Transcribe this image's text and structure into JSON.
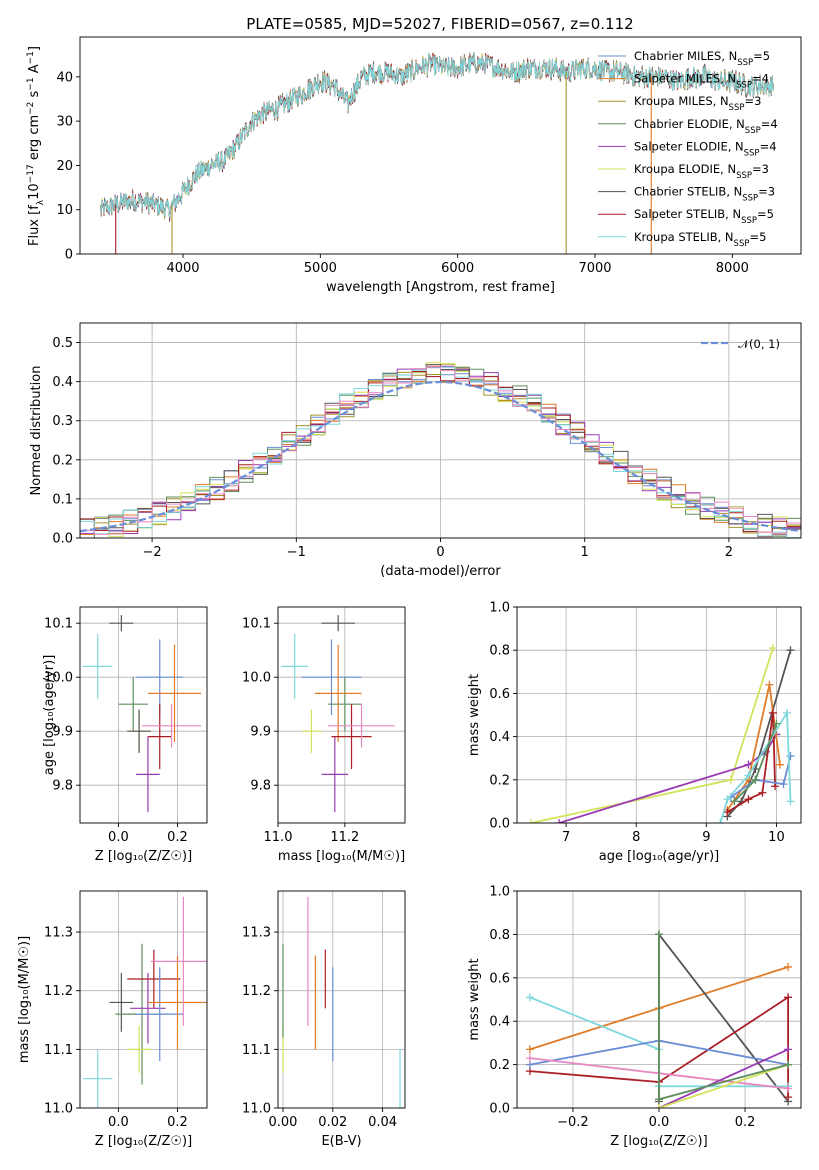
{
  "figure_title": "PLATE=0585, MJD=52027, FIBERID=0567, z=0.112",
  "colors": {
    "Chabrier MILES": "#6b8ed6",
    "Salpeter MILES": "#e07b28",
    "Kroupa MILES": "#a8922c",
    "Chabrier ELODIE": "#5e8f5e",
    "Salpeter ELODIE": "#9a3cb4",
    "Kroupa ELODIE": "#d4e25a",
    "Chabrier STELIB": "#555555",
    "Salpeter STELIB": "#aa1e24",
    "Kroupa STELIB": "#7fd8dc",
    "Pink": "#e888c0"
  },
  "chart_data": [
    {
      "id": "spectrum",
      "type": "line",
      "title": "PLATE=0585, MJD=52027, FIBERID=0567, z=0.112",
      "xlabel": "wavelength [Angstrom, rest frame]",
      "ylabel": "Flux [f$_\\lambda$10$^{-17}$ erg cm$^{-2}$ s$^{-1}$ A$^{-1}$]",
      "ylabel_parts": [
        "Flux [f",
        "λ",
        "10",
        "−17",
        " erg cm",
        "−2",
        " s",
        "−1",
        " A",
        "−1",
        "]"
      ],
      "xlim": [
        3250,
        8500
      ],
      "ylim": [
        0,
        49
      ],
      "xticks": [
        4000,
        5000,
        6000,
        7000,
        8000
      ],
      "yticks": [
        0,
        10,
        20,
        30,
        40
      ],
      "grid": false,
      "legend": "upper right",
      "flux_knots": {
        "x": [
          3400,
          3500,
          3600,
          3700,
          3800,
          3900,
          4000,
          4100,
          4200,
          4300,
          4400,
          4500,
          4600,
          4700,
          4800,
          4900,
          5000,
          5100,
          5200,
          5300,
          5400,
          5500,
          5600,
          5700,
          5800,
          5900,
          6000,
          6100,
          6200,
          6300,
          6400,
          6500,
          6600,
          6700,
          6800,
          6900,
          7000,
          7100,
          7200,
          7300,
          7400,
          7500,
          7600,
          7700,
          7800,
          7900,
          8000,
          8100,
          8200,
          8300
        ],
        "y": [
          10,
          11,
          12,
          12,
          11,
          10,
          14,
          18,
          20,
          21,
          25,
          30,
          32,
          33,
          35,
          37,
          39,
          38,
          34,
          40,
          41,
          41,
          40,
          42,
          43,
          42,
          42,
          43,
          43,
          42,
          41,
          42,
          42,
          42,
          41,
          42,
          42,
          41,
          41,
          40,
          40,
          40,
          39,
          40,
          40,
          39,
          39,
          38,
          38,
          38
        ]
      },
      "dropouts": [
        {
          "series": "Salpeter STELIB",
          "x": 3510
        },
        {
          "series": "Kroupa MILES",
          "x": 3920
        },
        {
          "series": "Kroupa MILES",
          "x": 6790
        },
        {
          "series": "Salpeter MILES",
          "x": 7410
        }
      ],
      "series": [
        {
          "name": "Chabrier MILES",
          "nssp": "5"
        },
        {
          "name": "Salpeter MILES",
          "nssp": "4"
        },
        {
          "name": "Kroupa MILES",
          "nssp": "3"
        },
        {
          "name": "Chabrier ELODIE",
          "nssp": "4"
        },
        {
          "name": "Salpeter ELODIE",
          "nssp": "4"
        },
        {
          "name": "Kroupa ELODIE",
          "nssp": "3"
        },
        {
          "name": "Chabrier STELIB",
          "nssp": "3"
        },
        {
          "name": "Salpeter STELIB",
          "nssp": "5"
        },
        {
          "name": "Kroupa STELIB",
          "nssp": "5"
        }
      ]
    },
    {
      "id": "residuals",
      "type": "histogram",
      "xlabel": "(data-model)/error",
      "ylabel": "Normed distribution",
      "xlim": [
        -2.5,
        2.5
      ],
      "ylim": [
        0,
        0.55
      ],
      "xticks": [
        -2,
        -1,
        0,
        1,
        2
      ],
      "xtick_labels": [
        "−2",
        "−1",
        "0",
        "1",
        "2"
      ],
      "yticks": [
        0.0,
        0.1,
        0.2,
        0.3,
        0.4,
        0.5
      ],
      "ytick_labels": [
        "0.0",
        "0.1",
        "0.2",
        "0.3",
        "0.4",
        "0.5"
      ],
      "grid": true,
      "legend": "upper right",
      "legend_label": "𝒩(0, 1)",
      "bin_width": 0.1,
      "dashed_color": "#6a8fd8"
    },
    {
      "id": "z_age",
      "type": "errorbar",
      "xlabel": "Z [log₁₀(Z/Z☉)]",
      "ylabel": "age  [log₁₀(age/yr)]",
      "xlim": [
        -0.13,
        0.3
      ],
      "ylim": [
        9.73,
        10.13
      ],
      "xticks": [
        0.0,
        0.2
      ],
      "xtick_labels": [
        "0.0",
        "0.2"
      ],
      "yticks": [
        9.8,
        9.9,
        10.0,
        10.1
      ],
      "ytick_labels": [
        "9.8",
        "9.9",
        "10.0",
        "10.1"
      ],
      "grid": true,
      "points": [
        {
          "c": "Kroupa STELIB",
          "x": -0.07,
          "y": 10.02,
          "xe": 0.05,
          "ye": 0.06
        },
        {
          "c": "Chabrier STELIB",
          "x": 0.01,
          "y": 10.1,
          "xe": 0.04,
          "ye": 0.015
        },
        {
          "c": "Chabrier ELODIE",
          "x": 0.05,
          "y": 9.95,
          "xe": 0.05,
          "ye": 0.05
        },
        {
          "c": "Kroupa ELODIE",
          "x": 0.07,
          "y": 9.9,
          "xe": 0.04,
          "ye": 0.04
        },
        {
          "c": "Chabrier STELIB",
          "x": 0.07,
          "y": 9.9,
          "xe": 0.04,
          "ye": 0.04
        },
        {
          "c": "Salpeter ELODIE",
          "x": 0.1,
          "y": 9.82,
          "xe": 0.04,
          "ye": 0.07
        },
        {
          "c": "Chabrier MILES",
          "x": 0.14,
          "y": 10.0,
          "xe": 0.08,
          "ye": 0.07
        },
        {
          "c": "Salpeter STELIB",
          "x": 0.14,
          "y": 9.89,
          "xe": 0.04,
          "ye": 0.06
        },
        {
          "c": "Salpeter MILES",
          "x": 0.19,
          "y": 9.97,
          "xe": 0.09,
          "ye": 0.09
        },
        {
          "c": "Pink",
          "x": 0.18,
          "y": 9.91,
          "xe": 0.1,
          "ye": 0.04
        }
      ]
    },
    {
      "id": "mass_age",
      "type": "errorbar",
      "xlabel": "mass [log₁₀(M/M☉)]",
      "ylabel": "",
      "xlim": [
        11.0,
        11.38
      ],
      "ylim": [
        9.73,
        10.13
      ],
      "xticks": [
        11.0,
        11.2
      ],
      "xtick_labels": [
        "11.0",
        "11.2"
      ],
      "yticks": [
        9.8,
        9.9,
        10.0,
        10.1
      ],
      "ytick_labels": [
        "9.8",
        "9.9",
        "10.0",
        "10.1"
      ],
      "grid": true,
      "points": [
        {
          "c": "Kroupa STELIB",
          "x": 11.05,
          "y": 10.02,
          "xe": 0.04,
          "ye": 0.06
        },
        {
          "c": "Kroupa ELODIE",
          "x": 11.1,
          "y": 9.9,
          "xe": 0.03,
          "ye": 0.04
        },
        {
          "c": "Chabrier STELIB",
          "x": 11.18,
          "y": 10.1,
          "xe": 0.05,
          "ye": 0.015
        },
        {
          "c": "Chabrier MILES",
          "x": 11.16,
          "y": 10.0,
          "xe": 0.09,
          "ye": 0.07
        },
        {
          "c": "Salpeter ELODIE",
          "x": 11.17,
          "y": 9.82,
          "xe": 0.04,
          "ye": 0.07
        },
        {
          "c": "Chabrier ELODIE",
          "x": 11.2,
          "y": 9.95,
          "xe": 0.05,
          "ye": 0.05
        },
        {
          "c": "Salpeter MILES",
          "x": 11.18,
          "y": 9.97,
          "xe": 0.07,
          "ye": 0.09
        },
        {
          "c": "Salpeter STELIB",
          "x": 11.22,
          "y": 9.89,
          "xe": 0.06,
          "ye": 0.06
        },
        {
          "c": "Pink",
          "x": 11.25,
          "y": 9.91,
          "xe": 0.1,
          "ye": 0.04
        }
      ]
    },
    {
      "id": "age_weight",
      "type": "line",
      "xlabel": "age  [log₁₀(age/yr)]",
      "ylabel": "mass weight",
      "xlim": [
        6.3,
        10.35
      ],
      "ylim": [
        0,
        1.0
      ],
      "xticks": [
        7,
        8,
        9,
        10
      ],
      "xtick_labels": [
        "7",
        "8",
        "9",
        "10"
      ],
      "yticks": [
        0,
        0.2,
        0.4,
        0.6,
        0.8,
        1.0
      ],
      "ytick_labels": [
        "0.0",
        "0.2",
        "0.4",
        "0.6",
        "0.8",
        "1.0"
      ],
      "grid": true,
      "series": [
        {
          "c": "Kroupa ELODIE",
          "x": [
            6.5,
            9.35,
            9.95
          ],
          "y": [
            0.0,
            0.2,
            0.81
          ]
        },
        {
          "c": "Salpeter ELODIE",
          "x": [
            6.9,
            9.6,
            9.85,
            10.0
          ],
          "y": [
            0.0,
            0.27,
            0.33,
            0.41
          ]
        },
        {
          "c": "Chabrier STELIB",
          "x": [
            9.3,
            9.5,
            9.7,
            10.2
          ],
          "y": [
            0.03,
            0.1,
            0.25,
            0.8
          ]
        },
        {
          "c": "Salpeter MILES",
          "x": [
            9.3,
            9.6,
            9.9,
            10.05
          ],
          "y": [
            0.06,
            0.2,
            0.64,
            0.27
          ]
        },
        {
          "c": "Salpeter STELIB",
          "x": [
            9.3,
            9.6,
            9.8,
            9.95,
            9.98
          ],
          "y": [
            0.05,
            0.11,
            0.14,
            0.51,
            0.17
          ]
        },
        {
          "c": "Chabrier MILES",
          "x": [
            9.35,
            9.7,
            10.1,
            10.2
          ],
          "y": [
            0.12,
            0.2,
            0.18,
            0.31
          ]
        },
        {
          "c": "Kroupa STELIB",
          "x": [
            9.2,
            9.3,
            9.6,
            10.15,
            10.2
          ],
          "y": [
            0.0,
            0.11,
            0.22,
            0.51,
            0.1
          ]
        },
        {
          "c": "Chabrier ELODIE",
          "x": [
            9.4,
            9.7,
            10.0
          ],
          "y": [
            0.1,
            0.2,
            0.46
          ]
        }
      ]
    },
    {
      "id": "z_mass",
      "type": "errorbar",
      "xlabel": "Z [log₁₀(Z/Z☉)]",
      "ylabel": "mass [log₁₀(M/M☉)]",
      "xlim": [
        -0.13,
        0.3
      ],
      "ylim": [
        11.0,
        11.37
      ],
      "xticks": [
        0.0,
        0.2
      ],
      "xtick_labels": [
        "0.0",
        "0.2"
      ],
      "yticks": [
        11.0,
        11.1,
        11.2,
        11.3
      ],
      "ytick_labels": [
        "11.0",
        "11.1",
        "11.2",
        "11.3"
      ],
      "grid": true,
      "points": [
        {
          "c": "Kroupa STELIB",
          "x": -0.07,
          "y": 11.05,
          "xe": 0.05,
          "ye": 0.05
        },
        {
          "c": "Chabrier STELIB",
          "x": 0.01,
          "y": 11.18,
          "xe": 0.04,
          "ye": 0.05
        },
        {
          "c": "Chabrier ELODIE",
          "x": 0.08,
          "y": 11.16,
          "xe": 0.09,
          "ye": 0.12
        },
        {
          "c": "Kroupa ELODIE",
          "x": 0.07,
          "y": 11.1,
          "xe": 0.04,
          "ye": 0.04
        },
        {
          "c": "Salpeter ELODIE",
          "x": 0.1,
          "y": 11.17,
          "xe": 0.06,
          "ye": 0.06
        },
        {
          "c": "Salpeter STELIB",
          "x": 0.12,
          "y": 11.22,
          "xe": 0.09,
          "ye": 0.05
        },
        {
          "c": "Chabrier MILES",
          "x": 0.14,
          "y": 11.16,
          "xe": 0.08,
          "ye": 0.08
        },
        {
          "c": "Salpeter MILES",
          "x": 0.2,
          "y": 11.18,
          "xe": 0.1,
          "ye": 0.08
        },
        {
          "c": "Pink",
          "x": 0.22,
          "y": 11.25,
          "xe": 0.11,
          "ye": 0.11
        }
      ]
    },
    {
      "id": "ebv_mass",
      "type": "errorbar",
      "xlabel": "E(B-V)",
      "ylabel": "",
      "xlim": [
        -0.002,
        0.049
      ],
      "ylim": [
        11.0,
        11.37
      ],
      "xticks": [
        0.0,
        0.02,
        0.04
      ],
      "xtick_labels": [
        "0.00",
        "0.02",
        "0.04"
      ],
      "yticks": [
        11.0,
        11.1,
        11.2,
        11.3
      ],
      "ytick_labels": [
        "11.0",
        "11.1",
        "11.2",
        "11.3"
      ],
      "grid": true,
      "points": [
        {
          "c": "Kroupa ELODIE",
          "x": 0.0,
          "y": 11.1,
          "xe": 0,
          "ye": 0.04
        },
        {
          "c": "Chabrier ELODIE",
          "x": 0.0,
          "y": 11.2,
          "xe": 0,
          "ye": 0.08
        },
        {
          "c": "Pink",
          "x": 0.01,
          "y": 11.25,
          "xe": 0,
          "ye": 0.11
        },
        {
          "c": "Salpeter MILES",
          "x": 0.013,
          "y": 11.18,
          "xe": 0,
          "ye": 0.08
        },
        {
          "c": "Salpeter STELIB",
          "x": 0.017,
          "y": 11.22,
          "xe": 0,
          "ye": 0.05
        },
        {
          "c": "Chabrier MILES",
          "x": 0.02,
          "y": 11.16,
          "xe": 0,
          "ye": 0.08
        },
        {
          "c": "Kroupa STELIB",
          "x": 0.047,
          "y": 11.05,
          "xe": 0,
          "ye": 0.05
        }
      ]
    },
    {
      "id": "z_weight",
      "type": "line",
      "xlabel": "Z [log₁₀(Z/Z☉)]",
      "ylabel": "mass weight",
      "xlim": [
        -0.33,
        0.33
      ],
      "ylim": [
        0,
        1.0
      ],
      "xticks": [
        -0.2,
        0.0,
        0.2
      ],
      "xtick_labels": [
        "−0.2",
        "0.0",
        "0.2"
      ],
      "yticks": [
        0,
        0.2,
        0.4,
        0.6,
        0.8,
        1.0
      ],
      "ytick_labels": [
        "0.0",
        "0.2",
        "0.4",
        "0.6",
        "0.8",
        "1.0"
      ],
      "grid": true,
      "series": [
        {
          "c": "Salpeter MILES",
          "x": [
            -0.3,
            0.0,
            0.3
          ],
          "y": [
            0.27,
            0.46,
            0.65
          ]
        },
        {
          "c": "Chabrier STELIB",
          "x": [
            0.0,
            0.0,
            0.3
          ],
          "y": [
            0.03,
            0.8,
            0.03
          ]
        },
        {
          "c": "Salpeter STELIB",
          "x": [
            -0.3,
            0.0,
            0.3,
            0.3
          ],
          "y": [
            0.17,
            0.12,
            0.51,
            0.05
          ]
        },
        {
          "c": "Kroupa STELIB",
          "x": [
            -0.3,
            0.0,
            0.0,
            0.3
          ],
          "y": [
            0.51,
            0.27,
            0.1,
            0.1
          ]
        },
        {
          "c": "Chabrier MILES",
          "x": [
            -0.3,
            0.0,
            0.3
          ],
          "y": [
            0.2,
            0.31,
            0.2
          ]
        },
        {
          "c": "Pink",
          "x": [
            -0.3,
            0.0,
            0.3
          ],
          "y": [
            0.23,
            0.16,
            0.09
          ]
        },
        {
          "c": "Salpeter ELODIE",
          "x": [
            0.0,
            0.3
          ],
          "y": [
            0.0,
            0.27
          ]
        },
        {
          "c": "Kroupa ELODIE",
          "x": [
            0.0,
            0.3
          ],
          "y": [
            0.0,
            0.2
          ]
        },
        {
          "c": "Chabrier ELODIE",
          "x": [
            0.0,
            0.0,
            0.3
          ],
          "y": [
            0.8,
            0.04,
            0.2
          ]
        }
      ]
    }
  ]
}
